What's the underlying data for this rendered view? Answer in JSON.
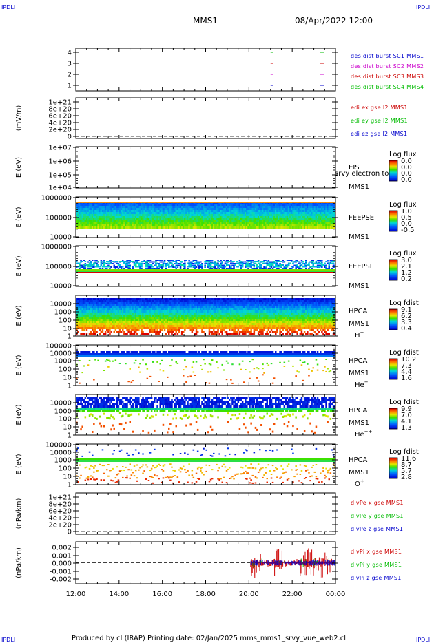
{
  "corner_marks": {
    "tl": "IPDLI",
    "tr": "IPDLI",
    "bl": "IPDLI",
    "br": "IPDLI"
  },
  "header": {
    "spacecraft": "MMS1",
    "datetime": "08/Apr/2022 12:00"
  },
  "footer": {
    "text": "Produced by cl (IRAP)   Printing date: 02/Jan/2025   mms_mms1_srvy_vue_web2.cl"
  },
  "time_axis": {
    "ticks": [
      "12:00",
      "14:00",
      "16:00",
      "18:00",
      "20:00",
      "22:00",
      "00:00"
    ]
  },
  "colors": {
    "blue": "#0000cc",
    "red": "#cc0000",
    "green": "#00bb00",
    "magenta": "#cc00cc"
  },
  "chart_data": [
    {
      "type": "scatter",
      "id": "burst",
      "title": "",
      "ylabel": "",
      "ytick_labels": [
        "4",
        "3",
        "2",
        "1"
      ],
      "series": [
        {
          "name": "des dist burst SC1 MMS1",
          "color": "#0000cc"
        },
        {
          "name": "des dist burst SC2 MMS2",
          "color": "#cc00cc"
        },
        {
          "name": "des dist burst SC3 MMS3",
          "color": "#cc0000"
        },
        {
          "name": "des dist burst SC4 MMS4",
          "color": "#00bb00"
        }
      ],
      "x": [
        "21:00",
        "23:15"
      ]
    },
    {
      "type": "line",
      "id": "edi",
      "ylabel": "(mV/m)",
      "ytick_labels": [
        "1e+21",
        "8e+20",
        "6e+20",
        "4e+20",
        "2e+20",
        "0"
      ],
      "series": [
        {
          "name": "edi ex gse l2 MMS1",
          "color": "#cc0000"
        },
        {
          "name": "edi ey gse l2 MMS1",
          "color": "#00bb00"
        },
        {
          "name": "edi ez gse l2 MMS1",
          "color": "#0000cc"
        }
      ]
    },
    {
      "type": "heatmap",
      "id": "eis",
      "ylabel": "E (eV)",
      "ytick_labels": [
        "1e+07",
        "1e+06",
        "1e+05",
        "1e+04"
      ],
      "instrument": "EIS",
      "instrument_sub": "srvy electron to",
      "mission": "MMS1",
      "colorbar": {
        "title": "Log flux",
        "labels": [
          "0.0",
          "0.0",
          "0.0",
          "0.0"
        ]
      }
    },
    {
      "type": "heatmap",
      "id": "feepse",
      "ylabel": "E (eV)",
      "ytick_labels": [
        "1000000",
        "100000",
        "10000"
      ],
      "instrument": "FEEPSE",
      "mission": "MMS1",
      "colorbar": {
        "title": "Log flux",
        "labels": [
          "1.0",
          "0.5",
          "0.0",
          "-0.5"
        ]
      }
    },
    {
      "type": "heatmap",
      "id": "feepsi",
      "ylabel": "E (eV)",
      "ytick_labels": [
        "1000000",
        "100000",
        "10000"
      ],
      "instrument": "FEEPSI",
      "mission": "MMS1",
      "colorbar": {
        "title": "Log flux",
        "labels": [
          "3.0",
          "2.1",
          "1.2",
          "0.2"
        ]
      }
    },
    {
      "type": "heatmap",
      "id": "hpca_h",
      "ylabel": "E (eV)",
      "ytick_labels": [
        "10000",
        "1000",
        "100",
        "10",
        "1"
      ],
      "instrument": "HPCA",
      "mission": "MMS1",
      "species": "H",
      "species_sup": "+",
      "colorbar": {
        "title": "Log fdist",
        "labels": [
          "9.1",
          "6.2",
          "3.3",
          "0.4"
        ]
      }
    },
    {
      "type": "heatmap",
      "id": "hpca_he",
      "ylabel": "E (eV)",
      "ytick_labels": [
        "100000",
        "10000",
        "1000",
        "100",
        "10",
        "1"
      ],
      "instrument": "HPCA",
      "mission": "MMS1",
      "species": "He",
      "species_sup": "+",
      "colorbar": {
        "title": "Log fdist",
        "labels": [
          "10.2",
          "7.3",
          "4.4",
          "1.6"
        ]
      }
    },
    {
      "type": "heatmap",
      "id": "hpca_he2",
      "ylabel": "E (eV)",
      "ytick_labels": [
        "10000",
        "1000",
        "100",
        "10",
        "1"
      ],
      "instrument": "HPCA",
      "mission": "MMS1",
      "species": "He",
      "species_sup": "++",
      "colorbar": {
        "title": "Log fdist",
        "labels": [
          "9.9",
          "7.0",
          "4.1",
          "1.3"
        ]
      }
    },
    {
      "type": "heatmap",
      "id": "hpca_o",
      "ylabel": "E (eV)",
      "ytick_labels": [
        "100000",
        "10000",
        "1000",
        "100",
        "10",
        "1"
      ],
      "instrument": "HPCA",
      "mission": "MMS1",
      "species": "O",
      "species_sup": "+",
      "colorbar": {
        "title": "Log fdist",
        "labels": [
          "11.6",
          "8.7",
          "5.7",
          "2.8"
        ]
      }
    },
    {
      "type": "line",
      "id": "divpe",
      "ylabel": "(nPa/km)",
      "ytick_labels": [
        "1e+21",
        "8e+20",
        "6e+20",
        "4e+20",
        "2e+20",
        "0"
      ],
      "series": [
        {
          "name": "divPe x gse MMS1",
          "color": "#cc0000"
        },
        {
          "name": "divPe y gse MMS1",
          "color": "#00bb00"
        },
        {
          "name": "divPe z gse MMS1",
          "color": "#0000cc"
        }
      ]
    },
    {
      "type": "line",
      "id": "divpi",
      "ylabel": "(nPa/km)",
      "ytick_labels": [
        "0.002",
        "0.001",
        "0.000",
        "-0.001",
        "-0.002"
      ],
      "ylim": [
        -0.0025,
        0.0025
      ],
      "data_start": "20:05",
      "series": [
        {
          "name": "divPi x gse MMS1",
          "color": "#cc0000"
        },
        {
          "name": "divPi y gse MMS1",
          "color": "#00bb00"
        },
        {
          "name": "divPi z gse MMS1",
          "color": "#0000cc"
        }
      ]
    }
  ]
}
